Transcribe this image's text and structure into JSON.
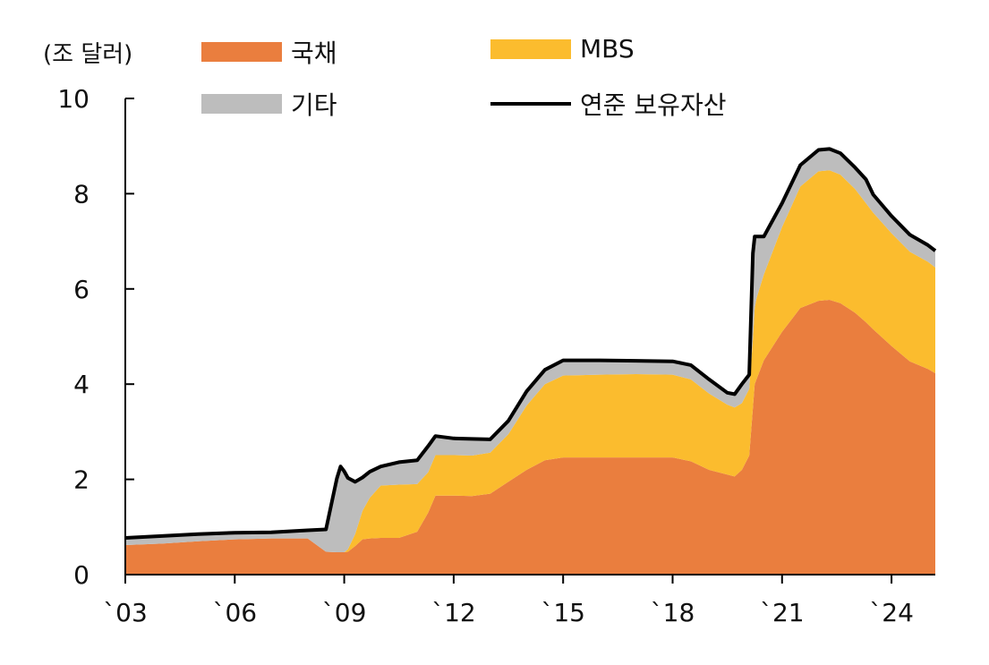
{
  "chart_data": {
    "type": "area",
    "unit_label": "(조 달러)",
    "x_tick_labels": [
      "`03",
      "`06",
      "`09",
      "`12",
      "`15",
      "`18",
      "`21",
      "`24"
    ],
    "x_ticks": [
      2003,
      2006,
      2009,
      2012,
      2015,
      2018,
      2021,
      2024
    ],
    "y_ticks": [
      0,
      2,
      4,
      6,
      8,
      10
    ],
    "xlim": [
      2003,
      2025.2
    ],
    "ylim": [
      0,
      10
    ],
    "legend": {
      "treasury": "국채",
      "mbs": "MBS",
      "other": "기타",
      "total": "연준 보유자산"
    },
    "colors": {
      "treasury": "#EA7E3E",
      "mbs": "#FBBC2E",
      "other": "#BDBDBD",
      "total": "#000000"
    },
    "x": [
      2003.0,
      2004.0,
      2005.0,
      2006.0,
      2007.0,
      2008.0,
      2008.5,
      2008.8,
      2008.9,
      2009.0,
      2009.1,
      2009.3,
      2009.5,
      2009.7,
      2010.0,
      2010.5,
      2011.0,
      2011.3,
      2011.5,
      2012.0,
      2012.5,
      2013.0,
      2013.5,
      2014.0,
      2014.5,
      2015.0,
      2016.0,
      2017.0,
      2018.0,
      2018.5,
      2019.0,
      2019.5,
      2019.7,
      2019.9,
      2020.1,
      2020.2,
      2020.25,
      2020.3,
      2020.5,
      2021.0,
      2021.5,
      2022.0,
      2022.3,
      2022.6,
      2023.0,
      2023.3,
      2023.5,
      2024.0,
      2024.5,
      2025.0,
      2025.2
    ],
    "series": [
      {
        "key": "treasury",
        "name": "국채",
        "values": [
          0.62,
          0.65,
          0.7,
          0.74,
          0.76,
          0.76,
          0.48,
          0.47,
          0.47,
          0.47,
          0.48,
          0.6,
          0.74,
          0.76,
          0.77,
          0.77,
          0.9,
          1.3,
          1.66,
          1.66,
          1.65,
          1.7,
          1.95,
          2.2,
          2.4,
          2.46,
          2.46,
          2.46,
          2.46,
          2.38,
          2.2,
          2.1,
          2.06,
          2.2,
          2.5,
          3.5,
          4.0,
          4.1,
          4.5,
          5.1,
          5.6,
          5.75,
          5.77,
          5.7,
          5.5,
          5.3,
          5.15,
          4.8,
          4.48,
          4.32,
          4.23
        ]
      },
      {
        "key": "mbs",
        "name": "MBS",
        "values": [
          0,
          0,
          0,
          0,
          0,
          0,
          0,
          0,
          0,
          0,
          0.05,
          0.25,
          0.6,
          0.85,
          1.1,
          1.12,
          1.0,
          0.85,
          0.85,
          0.85,
          0.85,
          0.86,
          1.0,
          1.35,
          1.6,
          1.72,
          1.74,
          1.75,
          1.74,
          1.72,
          1.6,
          1.47,
          1.45,
          1.4,
          1.4,
          1.45,
          1.6,
          1.7,
          1.8,
          2.2,
          2.55,
          2.72,
          2.72,
          2.7,
          2.6,
          2.5,
          2.45,
          2.37,
          2.3,
          2.25,
          2.22
        ]
      },
      {
        "key": "other",
        "name": "기타",
        "values": [
          0.15,
          0.16,
          0.15,
          0.14,
          0.13,
          0.17,
          0.47,
          1.55,
          1.8,
          1.7,
          1.5,
          1.1,
          0.7,
          0.55,
          0.4,
          0.47,
          0.5,
          0.55,
          0.4,
          0.35,
          0.35,
          0.28,
          0.28,
          0.3,
          0.3,
          0.32,
          0.3,
          0.28,
          0.28,
          0.3,
          0.3,
          0.25,
          0.28,
          0.4,
          0.3,
          1.8,
          1.5,
          1.3,
          0.8,
          0.5,
          0.45,
          0.45,
          0.45,
          0.45,
          0.45,
          0.5,
          0.38,
          0.36,
          0.36,
          0.35,
          0.35
        ]
      }
    ],
    "total_series_name": "연준 보유자산"
  }
}
